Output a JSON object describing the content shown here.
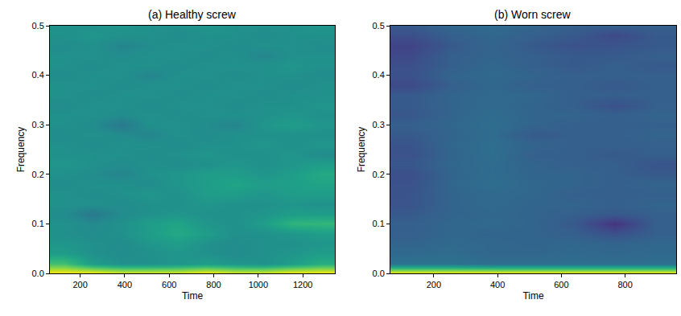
{
  "chart_data": [
    {
      "type": "heatmap",
      "title": "(a) Healthy screw",
      "x_label": "Time",
      "y_label": "Frequency",
      "xlim": [
        64,
        1344
      ],
      "xticks": [
        200,
        400,
        600,
        800,
        1000,
        1200
      ],
      "ylim": [
        0,
        0.5
      ],
      "yticks": [
        {
          "value": 0,
          "label": "0.0"
        },
        {
          "value": 0.1,
          "label": "0.1"
        },
        {
          "value": 0.2,
          "label": "0.2"
        },
        {
          "value": 0.3,
          "label": "0.3"
        },
        {
          "value": 0.4,
          "label": "0.4"
        },
        {
          "value": 0.5,
          "label": "0.5"
        }
      ],
      "zlim": [
        0,
        1
      ],
      "x": [
        128,
        256,
        384,
        512,
        640,
        768,
        896,
        1024,
        1152,
        1280
      ],
      "y": [
        0,
        0.02,
        0.04,
        0.06,
        0.08,
        0.1,
        0.12,
        0.14,
        0.16,
        0.18,
        0.2,
        0.22,
        0.24,
        0.26,
        0.28,
        0.3,
        0.32,
        0.34,
        0.36,
        0.38,
        0.4,
        0.42,
        0.44,
        0.46,
        0.48,
        0.5
      ],
      "z": [
        [
          1,
          1,
          0.95,
          0.95,
          0.95,
          1,
          0.95,
          0.95,
          1,
          1
        ],
        [
          0.7,
          0.55,
          0.5,
          0.5,
          0.52,
          0.55,
          0.52,
          0.5,
          0.55,
          0.62
        ],
        [
          0.55,
          0.5,
          0.48,
          0.5,
          0.52,
          0.5,
          0.48,
          0.5,
          0.52,
          0.55
        ],
        [
          0.52,
          0.5,
          0.48,
          0.52,
          0.55,
          0.5,
          0.48,
          0.5,
          0.5,
          0.52
        ],
        [
          0.5,
          0.48,
          0.5,
          0.55,
          0.6,
          0.55,
          0.5,
          0.5,
          0.52,
          0.55
        ],
        [
          0.5,
          0.47,
          0.5,
          0.55,
          0.58,
          0.52,
          0.5,
          0.55,
          0.65,
          0.66
        ],
        [
          0.48,
          0.4,
          0.48,
          0.5,
          0.52,
          0.5,
          0.5,
          0.52,
          0.55,
          0.55
        ],
        [
          0.5,
          0.5,
          0.48,
          0.5,
          0.5,
          0.52,
          0.5,
          0.5,
          0.52,
          0.5
        ],
        [
          0.5,
          0.48,
          0.5,
          0.52,
          0.5,
          0.55,
          0.55,
          0.52,
          0.55,
          0.55
        ],
        [
          0.48,
          0.5,
          0.5,
          0.48,
          0.52,
          0.55,
          0.58,
          0.55,
          0.56,
          0.58
        ],
        [
          0.5,
          0.48,
          0.45,
          0.5,
          0.52,
          0.55,
          0.55,
          0.52,
          0.55,
          0.6
        ],
        [
          0.52,
          0.5,
          0.48,
          0.5,
          0.48,
          0.5,
          0.52,
          0.5,
          0.52,
          0.55
        ],
        [
          0.5,
          0.5,
          0.5,
          0.48,
          0.5,
          0.52,
          0.5,
          0.5,
          0.52,
          0.48
        ],
        [
          0.5,
          0.48,
          0.5,
          0.5,
          0.48,
          0.5,
          0.5,
          0.52,
          0.5,
          0.52
        ],
        [
          0.48,
          0.5,
          0.48,
          0.45,
          0.5,
          0.48,
          0.5,
          0.5,
          0.5,
          0.5
        ],
        [
          0.5,
          0.48,
          0.4,
          0.5,
          0.5,
          0.48,
          0.45,
          0.52,
          0.55,
          0.52
        ],
        [
          0.5,
          0.5,
          0.48,
          0.5,
          0.48,
          0.5,
          0.5,
          0.5,
          0.52,
          0.5
        ],
        [
          0.48,
          0.5,
          0.5,
          0.48,
          0.5,
          0.5,
          0.48,
          0.5,
          0.5,
          0.52
        ],
        [
          0.5,
          0.48,
          0.5,
          0.5,
          0.48,
          0.5,
          0.5,
          0.48,
          0.5,
          0.5
        ],
        [
          0.5,
          0.5,
          0.48,
          0.5,
          0.5,
          0.48,
          0.5,
          0.5,
          0.48,
          0.5
        ],
        [
          0.48,
          0.5,
          0.5,
          0.45,
          0.5,
          0.5,
          0.48,
          0.5,
          0.5,
          0.48
        ],
        [
          0.5,
          0.48,
          0.5,
          0.5,
          0.48,
          0.5,
          0.5,
          0.5,
          0.52,
          0.5
        ],
        [
          0.5,
          0.5,
          0.48,
          0.5,
          0.5,
          0.48,
          0.5,
          0.45,
          0.5,
          0.5
        ],
        [
          0.48,
          0.5,
          0.45,
          0.48,
          0.5,
          0.5,
          0.48,
          0.5,
          0.5,
          0.48
        ],
        [
          0.5,
          0.52,
          0.5,
          0.5,
          0.48,
          0.5,
          0.5,
          0.48,
          0.5,
          0.5
        ],
        [
          0.5,
          0.5,
          0.52,
          0.5,
          0.5,
          0.52,
          0.5,
          0.5,
          0.5,
          0.52
        ]
      ]
    },
    {
      "type": "heatmap",
      "title": "(b) Worn screw",
      "x_label": "Time",
      "y_label": "Frequency",
      "xlim": [
        64,
        960
      ],
      "xticks": [
        200,
        400,
        600,
        800
      ],
      "ylim": [
        0,
        0.5
      ],
      "yticks": [
        {
          "value": 0,
          "label": "0.0"
        },
        {
          "value": 0.1,
          "label": "0.1"
        },
        {
          "value": 0.2,
          "label": "0.2"
        },
        {
          "value": 0.3,
          "label": "0.3"
        },
        {
          "value": 0.4,
          "label": "0.4"
        },
        {
          "value": 0.5,
          "label": "0.5"
        }
      ],
      "zlim": [
        0,
        1
      ],
      "x": [
        128,
        256,
        384,
        512,
        640,
        768,
        896
      ],
      "y": [
        0,
        0.02,
        0.04,
        0.06,
        0.08,
        0.1,
        0.12,
        0.14,
        0.16,
        0.18,
        0.2,
        0.22,
        0.24,
        0.26,
        0.28,
        0.3,
        0.32,
        0.34,
        0.36,
        0.38,
        0.4,
        0.42,
        0.44,
        0.46,
        0.48,
        0.5
      ],
      "z": [
        [
          1,
          1,
          1,
          1,
          1,
          1,
          1
        ],
        [
          0.38,
          0.38,
          0.36,
          0.36,
          0.36,
          0.36,
          0.36
        ],
        [
          0.34,
          0.35,
          0.33,
          0.33,
          0.34,
          0.33,
          0.34
        ],
        [
          0.32,
          0.34,
          0.33,
          0.32,
          0.33,
          0.32,
          0.33
        ],
        [
          0.3,
          0.33,
          0.32,
          0.32,
          0.3,
          0.25,
          0.3
        ],
        [
          0.3,
          0.33,
          0.34,
          0.32,
          0.28,
          0.15,
          0.3
        ],
        [
          0.28,
          0.32,
          0.33,
          0.32,
          0.3,
          0.28,
          0.3
        ],
        [
          0.26,
          0.32,
          0.34,
          0.32,
          0.32,
          0.3,
          0.32
        ],
        [
          0.26,
          0.32,
          0.34,
          0.33,
          0.3,
          0.3,
          0.3
        ],
        [
          0.25,
          0.33,
          0.36,
          0.33,
          0.32,
          0.3,
          0.32
        ],
        [
          0.24,
          0.32,
          0.35,
          0.32,
          0.32,
          0.3,
          0.28
        ],
        [
          0.27,
          0.33,
          0.35,
          0.32,
          0.3,
          0.3,
          0.26
        ],
        [
          0.25,
          0.32,
          0.36,
          0.3,
          0.3,
          0.28,
          0.3
        ],
        [
          0.26,
          0.33,
          0.36,
          0.32,
          0.3,
          0.3,
          0.3
        ],
        [
          0.28,
          0.32,
          0.35,
          0.28,
          0.3,
          0.3,
          0.32
        ],
        [
          0.3,
          0.33,
          0.36,
          0.32,
          0.3,
          0.3,
          0.3
        ],
        [
          0.27,
          0.32,
          0.35,
          0.32,
          0.32,
          0.3,
          0.32
        ],
        [
          0.28,
          0.32,
          0.34,
          0.32,
          0.3,
          0.25,
          0.3
        ],
        [
          0.28,
          0.32,
          0.34,
          0.33,
          0.3,
          0.3,
          0.3
        ],
        [
          0.22,
          0.3,
          0.33,
          0.3,
          0.3,
          0.28,
          0.3
        ],
        [
          0.25,
          0.32,
          0.34,
          0.32,
          0.3,
          0.3,
          0.3
        ],
        [
          0.24,
          0.3,
          0.33,
          0.3,
          0.28,
          0.3,
          0.28
        ],
        [
          0.22,
          0.3,
          0.32,
          0.3,
          0.28,
          0.28,
          0.3
        ],
        [
          0.2,
          0.28,
          0.32,
          0.28,
          0.25,
          0.26,
          0.28
        ],
        [
          0.24,
          0.3,
          0.33,
          0.3,
          0.28,
          0.22,
          0.28
        ],
        [
          0.28,
          0.33,
          0.35,
          0.32,
          0.3,
          0.3,
          0.3
        ]
      ]
    }
  ]
}
